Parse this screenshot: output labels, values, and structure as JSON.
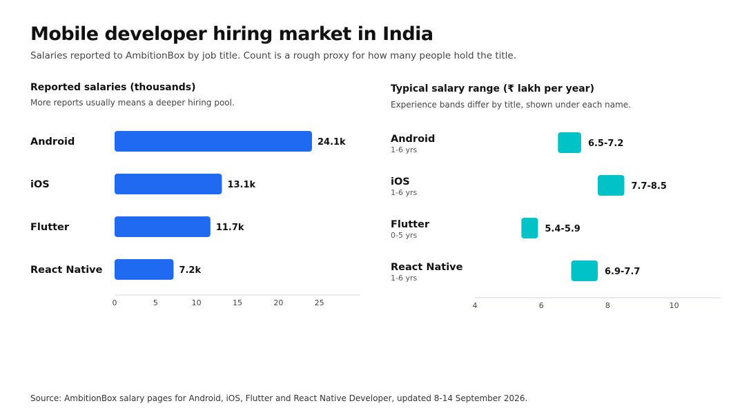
{
  "header": {
    "title": "Mobile developer hiring market in India",
    "subtitle": "Salaries reported to AmbitionBox by job title. Count is a rough proxy for how many people hold the title."
  },
  "left_panel": {
    "title": "Reported salaries (thousands)",
    "note": "More reports usually means a deeper hiring pool."
  },
  "right_panel": {
    "title": "Typical salary range (₹ lakh per year)",
    "note": "Experience bands differ by title, shown under each name."
  },
  "footer": {
    "source": "Source: AmbitionBox salary pages for Android, iOS, Flutter and React Native Developer, updated 8-14 September 2026."
  },
  "colors": {
    "bar": "#1f6af0",
    "range": "#00c2c7",
    "axis": "#cfd4dc",
    "tick_text": "#444444",
    "label_text": "#111111",
    "muted_text": "#555555"
  },
  "chart_data": [
    {
      "type": "bar",
      "orientation": "horizontal",
      "title": "Reported salaries (thousands)",
      "subtitle": "More reports usually means a deeper hiring pool.",
      "categories": [
        "Android",
        "iOS",
        "Flutter",
        "React Native"
      ],
      "values": [
        24.1,
        13.1,
        11.7,
        7.2
      ],
      "data_labels": [
        "24.1k",
        "13.1k",
        "11.7k",
        "7.2k"
      ],
      "xlim": [
        0,
        30
      ],
      "xticks": [
        0,
        5,
        10,
        15,
        20,
        25
      ],
      "grid": false,
      "legend": "none"
    },
    {
      "type": "range",
      "orientation": "horizontal",
      "title": "Typical salary range (₹ lakh per year)",
      "subtitle": "Experience bands differ by title, shown under each name.",
      "categories": [
        "Android",
        "iOS",
        "Flutter",
        "React Native"
      ],
      "experience": [
        "1-6 yrs",
        "1-6 yrs",
        "0-5 yrs",
        "1-6 yrs"
      ],
      "low": [
        6.5,
        7.7,
        5.4,
        6.9
      ],
      "high": [
        7.2,
        8.5,
        5.9,
        7.7
      ],
      "data_labels": [
        "6.5-7.2",
        "7.7-8.5",
        "5.4-5.9",
        "6.9-7.7"
      ],
      "xlim": [
        4,
        11.4
      ],
      "xticks": [
        4,
        6,
        8,
        10
      ],
      "grid": false,
      "legend": "none"
    }
  ]
}
